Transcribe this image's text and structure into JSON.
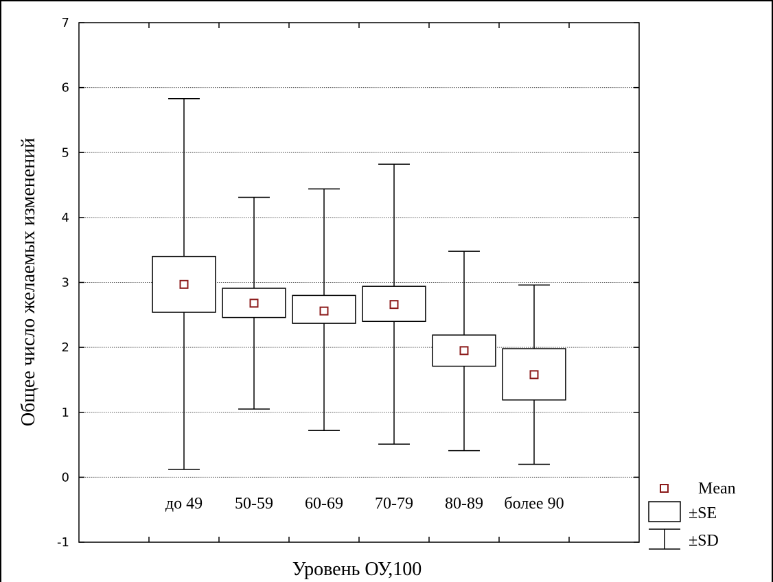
{
  "chart_data": {
    "type": "box",
    "title": "",
    "xlabel": "Уровень ОУ,100",
    "ylabel": "Общее число желаемых изменений",
    "ylim": [
      -1,
      7
    ],
    "yticks": [
      "-1",
      "0",
      "1",
      "2",
      "3",
      "4",
      "5",
      "6",
      "7"
    ],
    "grid": "horizontal dotted",
    "legend_position": "bottom-right",
    "categories": [
      "до 49",
      "50-59",
      "60-69",
      "70-79",
      "80-89",
      "более 90"
    ],
    "series": [
      {
        "mean": [
          2.97,
          2.68,
          2.56,
          2.66,
          1.95,
          1.58
        ],
        "se_low": [
          2.54,
          2.46,
          2.37,
          2.4,
          1.71,
          1.19
        ],
        "se_high": [
          3.4,
          2.91,
          2.8,
          2.94,
          2.19,
          1.98
        ],
        "sd_low": [
          0.12,
          1.05,
          0.72,
          0.51,
          0.41,
          0.2
        ],
        "sd_high": [
          5.83,
          4.31,
          4.44,
          4.82,
          3.48,
          2.96
        ]
      }
    ],
    "legend": [
      "Mean",
      "±SE",
      "±SD"
    ],
    "colors": {
      "mean_marker": "#8B1A1A",
      "lines": "#000000",
      "grid": "#555555",
      "background": "#ffffff"
    }
  }
}
